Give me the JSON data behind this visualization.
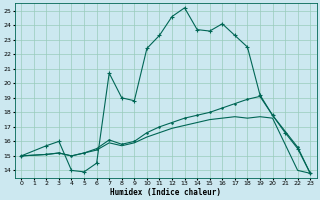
{
  "xlabel": "Humidex (Indice chaleur)",
  "bg_color": "#cce8f0",
  "grid_color": "#99ccbb",
  "line_color": "#006655",
  "xlim": [
    -0.5,
    23.5
  ],
  "ylim": [
    13.5,
    25.5
  ],
  "xticks": [
    0,
    1,
    2,
    3,
    4,
    5,
    6,
    7,
    8,
    9,
    10,
    11,
    12,
    13,
    14,
    15,
    16,
    17,
    18,
    19,
    20,
    21,
    22,
    23
  ],
  "yticks": [
    14,
    15,
    16,
    17,
    18,
    19,
    20,
    21,
    22,
    23,
    24,
    25
  ],
  "curve1_x": [
    0,
    2,
    3,
    4,
    5,
    6,
    7,
    8,
    9,
    10,
    11,
    12,
    13,
    14,
    15,
    16,
    17,
    18,
    19,
    20,
    21,
    22,
    23
  ],
  "curve1_y": [
    15.0,
    15.7,
    16.0,
    14.0,
    13.9,
    14.5,
    20.7,
    19.0,
    18.8,
    22.4,
    23.3,
    24.6,
    25.2,
    23.7,
    23.6,
    24.1,
    23.3,
    22.5,
    19.2,
    17.8,
    16.6,
    15.5,
    13.8
  ],
  "curve2_x": [
    0,
    2,
    3,
    4,
    5,
    6,
    7,
    8,
    9,
    10,
    11,
    12,
    13,
    14,
    15,
    16,
    17,
    18,
    19,
    20,
    22,
    23
  ],
  "curve2_y": [
    15.0,
    15.1,
    15.2,
    15.0,
    15.2,
    15.5,
    16.1,
    15.8,
    16.0,
    16.6,
    17.0,
    17.3,
    17.6,
    17.8,
    18.0,
    18.3,
    18.6,
    18.9,
    19.1,
    17.8,
    15.6,
    13.8
  ],
  "curve3_x": [
    0,
    2,
    3,
    4,
    5,
    6,
    7,
    8,
    9,
    10,
    11,
    12,
    13,
    14,
    15,
    16,
    17,
    18,
    19,
    20,
    22,
    23
  ],
  "curve3_y": [
    15.0,
    15.1,
    15.2,
    15.0,
    15.2,
    15.4,
    15.9,
    15.7,
    15.9,
    16.3,
    16.6,
    16.9,
    17.1,
    17.3,
    17.5,
    17.6,
    17.7,
    17.6,
    17.7,
    17.6,
    14.0,
    13.8
  ]
}
